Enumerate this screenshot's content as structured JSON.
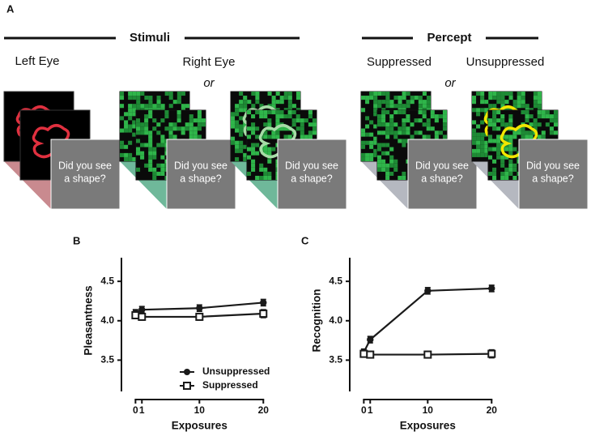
{
  "panel_a": {
    "label": "A",
    "headers": [
      "Stimuli",
      "Percept"
    ],
    "eye_labels": [
      "Left Eye",
      "Right Eye",
      "Suppressed",
      "Unsuppressed"
    ],
    "or_labels": [
      "or",
      "or"
    ],
    "cards": [
      {
        "lines": [
          "Did you see",
          "a shape?"
        ]
      },
      {
        "lines": [
          "Did you see",
          "a shape?"
        ]
      },
      {
        "lines": [
          "Did you see",
          "a shape?"
        ]
      },
      {
        "lines": [
          "Did you see",
          "a shape?"
        ]
      },
      {
        "lines": [
          "Did you see",
          "a shape?"
        ]
      }
    ]
  },
  "panel_labels": [
    "B",
    "C"
  ],
  "chart_data": [
    {
      "type": "line",
      "x_label": "Exposures",
      "y_label": "Pleasantness",
      "xlim": [
        -2.2,
        20.6
      ],
      "xticks": [
        0,
        1,
        10,
        20
      ],
      "ylim": [
        3.0,
        4.8
      ],
      "yticks": [
        3.5,
        {
          "value": 4,
          "label": "4.0"
        },
        4.5
      ],
      "legend": "lower right",
      "series": [
        {
          "name": "Unsuppressed",
          "color": "#1a1a1a",
          "marker": "circle",
          "x": [
            0,
            1,
            10,
            20
          ],
          "values": [
            4.1,
            4.14,
            4.16,
            4.23
          ],
          "errors": [
            0.04,
            0.04,
            0.04,
            0.04
          ]
        },
        {
          "name": "Suppressed",
          "color": "#1a1a1a",
          "marker": "square-open",
          "x": [
            0,
            1,
            10,
            20
          ],
          "values": [
            4.07,
            4.05,
            4.05,
            4.09
          ],
          "errors": [
            0.04,
            0.04,
            0.04,
            0.05
          ]
        }
      ]
    },
    {
      "type": "line",
      "x_label": "Exposures",
      "y_label": "Recognition",
      "xlim": [
        -2.2,
        20.6
      ],
      "xticks": [
        0,
        1,
        10,
        20
      ],
      "ylim": [
        3.0,
        4.8
      ],
      "yticks": [
        3.5,
        {
          "value": 4,
          "label": "4.0"
        },
        4.5
      ],
      "series": [
        {
          "color": "#1a1a1a",
          "marker": "circle",
          "x": [
            0,
            1,
            10,
            20
          ],
          "values": [
            3.6,
            3.76,
            4.38,
            4.41
          ],
          "errors": [
            0.04,
            0.04,
            0.04,
            0.04
          ]
        },
        {
          "color": "#1a1a1a",
          "marker": "square-open",
          "x": [
            0,
            1,
            10,
            20
          ],
          "values": [
            3.58,
            3.57,
            3.57,
            3.58
          ],
          "errors": [
            0.04,
            0.04,
            0.04,
            0.05
          ]
        }
      ]
    }
  ]
}
